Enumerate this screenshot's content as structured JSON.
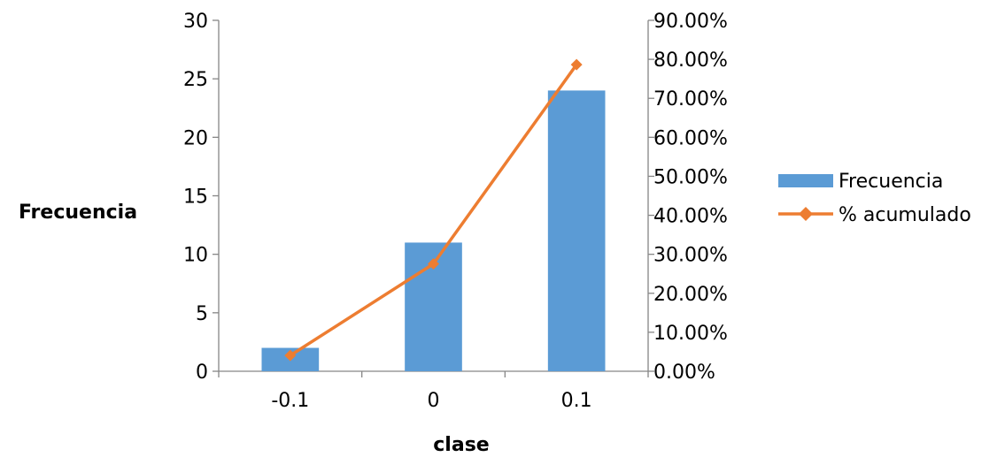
{
  "chart_data": {
    "type": "bar",
    "categories": [
      "-0.1",
      "0",
      "0.1"
    ],
    "series": [
      {
        "name": "Frecuencia",
        "type": "bar",
        "axis": "left",
        "values": [
          2,
          11,
          24
        ],
        "color": "#5B9BD5"
      },
      {
        "name": "% acumulado",
        "type": "line",
        "axis": "right",
        "values": [
          0.0405,
          0.2755,
          0.7865
        ],
        "color": "#ED7D31",
        "marker": "diamond"
      }
    ],
    "xlabel": "clase",
    "ylabel": "Frecuencia",
    "ylim": [
      0,
      30
    ],
    "y_ticks": [
      "0",
      "5",
      "10",
      "15",
      "20",
      "25",
      "30"
    ],
    "y2lim": [
      0,
      0.9
    ],
    "y2_ticks": [
      "0.00%",
      "10.00%",
      "20.00%",
      "30.00%",
      "40.00%",
      "50.00%",
      "60.00%",
      "70.00%",
      "80.00%",
      "90.00%"
    ],
    "grid": false,
    "legend_position": "right"
  }
}
